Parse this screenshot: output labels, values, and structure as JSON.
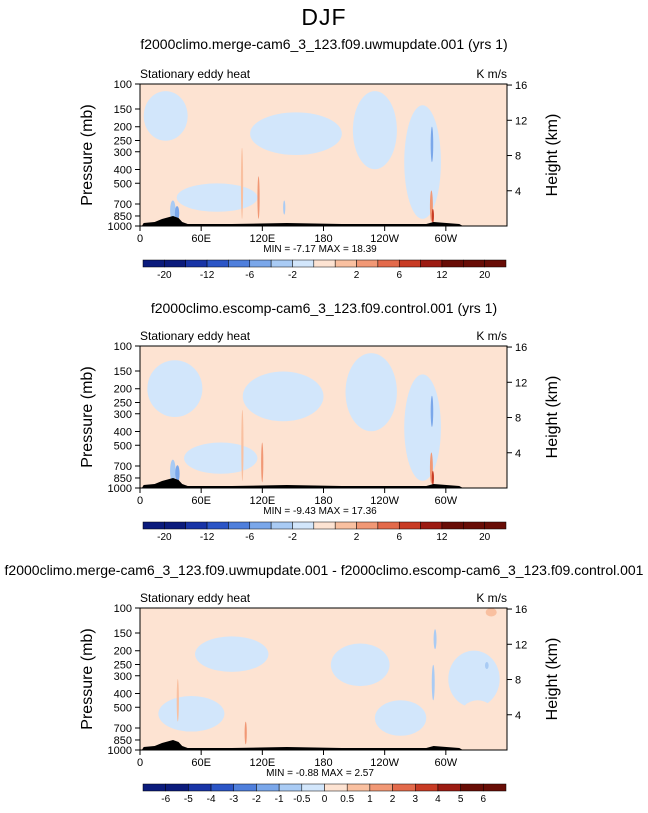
{
  "page": {
    "title": "DJF"
  },
  "colors": {
    "positive": [
      "#fde3d2",
      "#f9c0a0",
      "#f19875",
      "#e36a4b",
      "#c83b24",
      "#9c1b12",
      "#680d06"
    ],
    "negative": [
      "#d2e6fb",
      "#a9cbf4",
      "#7aa7ea",
      "#4f7fdc",
      "#2b55c6",
      "#1834a6",
      "#0b1b7c"
    ],
    "terrain": "#000000"
  },
  "chart_data": [
    {
      "type": "heatmap",
      "title": "f2000climo.merge-cam6_3_123.f09.uwmupdate.001 (yrs 1)",
      "subtitle_left": "Stationary eddy heat",
      "subtitle_right": "K m/s",
      "ylabel": "Pressure (mb)",
      "ylabel_right": "Height (km)",
      "yticks": [
        "100",
        "150",
        "200",
        "250",
        "300",
        "400",
        "500",
        "700",
        "850",
        "1000"
      ],
      "yticks_right": [
        "16",
        "12",
        "8",
        "4"
      ],
      "xticks": [
        "0",
        "60E",
        "120E",
        "180",
        "120W",
        "60W"
      ],
      "ylim": [
        1000,
        100
      ],
      "stats": {
        "min_label": "MIN =",
        "min": "-7.17",
        "max_label": "MAX =",
        "max": "18.39"
      },
      "colorbar_levels": [
        -20,
        -16,
        -12,
        -8,
        -6,
        -4,
        -2,
        -1,
        1,
        2,
        4,
        6,
        8,
        12,
        16,
        20
      ],
      "colorbar_labels": [
        "-20",
        "-12",
        "-6",
        "-2",
        "2",
        "6",
        "12",
        "20"
      ]
    },
    {
      "type": "heatmap",
      "title": "f2000climo.escomp-cam6_3_123.f09.control.001 (yrs 1)",
      "subtitle_left": "Stationary eddy heat",
      "subtitle_right": "K m/s",
      "ylabel": "Pressure (mb)",
      "ylabel_right": "Height (km)",
      "yticks": [
        "100",
        "150",
        "200",
        "250",
        "300",
        "400",
        "500",
        "700",
        "850",
        "1000"
      ],
      "yticks_right": [
        "16",
        "12",
        "8",
        "4"
      ],
      "xticks": [
        "0",
        "60E",
        "120E",
        "180",
        "120W",
        "60W"
      ],
      "ylim": [
        1000,
        100
      ],
      "stats": {
        "min_label": "MIN =",
        "min": "-9.43",
        "max_label": "MAX =",
        "max": "17.36"
      },
      "colorbar_levels": [
        -20,
        -16,
        -12,
        -8,
        -6,
        -4,
        -2,
        -1,
        1,
        2,
        4,
        6,
        8,
        12,
        16,
        20
      ],
      "colorbar_labels": [
        "-20",
        "-12",
        "-6",
        "-2",
        "2",
        "6",
        "12",
        "20"
      ]
    },
    {
      "type": "heatmap",
      "title": "f2000climo.merge-cam6_3_123.f09.uwmupdate.001 - f2000climo.escomp-cam6_3_123.f09.control.001",
      "subtitle_left": "Stationary eddy heat",
      "subtitle_right": "K m/s",
      "ylabel": "Pressure (mb)",
      "ylabel_right": "Height (km)",
      "yticks": [
        "100",
        "150",
        "200",
        "250",
        "300",
        "400",
        "500",
        "700",
        "850",
        "1000"
      ],
      "yticks_right": [
        "16",
        "12",
        "8",
        "4"
      ],
      "xticks": [
        "0",
        "60E",
        "120E",
        "180",
        "120W",
        "60W"
      ],
      "ylim": [
        1000,
        100
      ],
      "stats": {
        "min_label": "MIN =",
        "min": "-0.88",
        "max_label": "MAX =",
        "max": "2.57"
      },
      "colorbar_levels": [
        -6,
        -5,
        -4,
        -3,
        -2,
        -1,
        -0.5,
        0,
        0.5,
        1,
        2,
        3,
        4,
        5,
        6
      ],
      "colorbar_labels": [
        "-6",
        "-5",
        "-4",
        "-3",
        "-2",
        "-1",
        "-0.5",
        "0",
        "0.5",
        "1",
        "2",
        "3",
        "4",
        "5",
        "6"
      ]
    }
  ]
}
